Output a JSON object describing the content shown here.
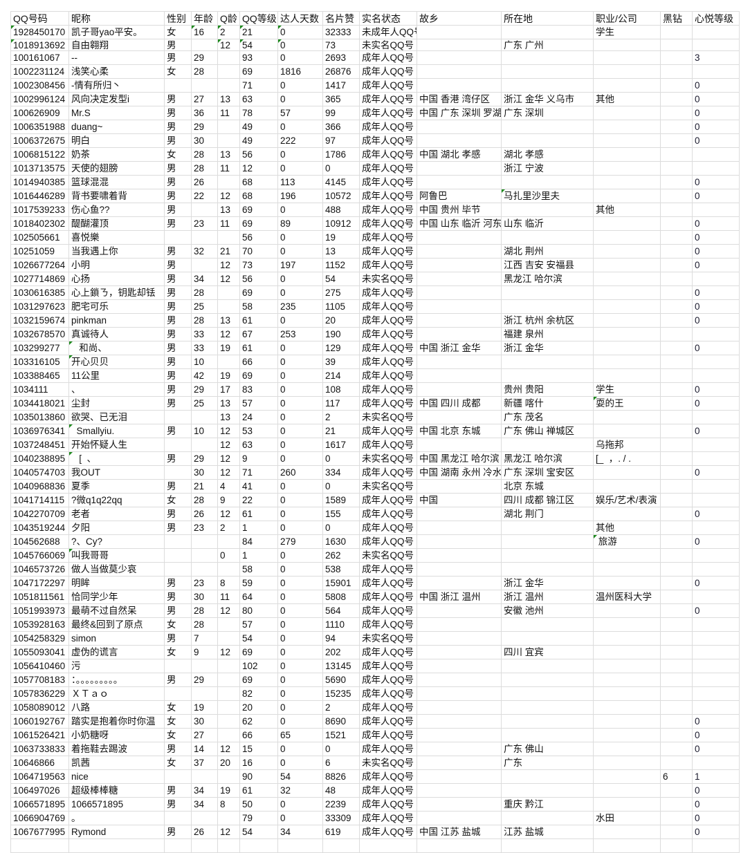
{
  "headers": [
    "QQ号码",
    "昵称",
    "性别",
    "年龄",
    "Q龄",
    "QQ等级",
    "达人天数",
    "名片赞",
    "实名状态",
    "故乡",
    "所在地",
    "职业/公司",
    "黑钻",
    "心悦等级"
  ],
  "accent_colors": {
    "gridline": "#dcdcdc",
    "cell_flag": "#1e8a1e"
  },
  "rows": [
    {
      "cells": [
        "1928450170",
        "凯子哥yao平安。",
        "女",
        "16",
        "2",
        "21",
        "0",
        "32333",
        "未成年人QQ号",
        "",
        "",
        "学生",
        "",
        ""
      ],
      "flags": [
        0,
        3,
        4,
        5,
        6
      ]
    },
    {
      "cells": [
        "1018913692",
        "自由翱翔",
        "男",
        "",
        "12",
        "54",
        "0",
        "73",
        "未实名QQ号",
        "",
        "广东 广州",
        "",
        "",
        ""
      ],
      "flags": [
        0,
        4,
        5,
        6
      ]
    },
    {
      "cells": [
        "100161067",
        "--",
        "男",
        "29",
        "",
        "93",
        "0",
        "2693",
        "成年人QQ号",
        "",
        "",
        "",
        "",
        "3"
      ]
    },
    {
      "cells": [
        "1002231124",
        "浅笑心柔",
        "女",
        "28",
        "",
        "69",
        "1816",
        "26876",
        "成年人QQ号",
        "",
        "",
        "",
        "",
        ""
      ]
    },
    {
      "cells": [
        "1002308456",
        "-情有所归丶",
        "",
        "",
        "",
        "71",
        "0",
        "1417",
        "成年人QQ号",
        "",
        "",
        "",
        "",
        "0"
      ]
    },
    {
      "cells": [
        "1002996124",
        "风向决定发型i",
        "男",
        "27",
        "13",
        "63",
        "0",
        "365",
        "成年人QQ号",
        "中国 香港 湾仔区",
        "浙江 金华 义乌市",
        "其他",
        "",
        "0"
      ]
    },
    {
      "cells": [
        "100626909",
        "Mr.S",
        "男",
        "36",
        "11",
        "78",
        "57",
        "99",
        "成年人QQ号",
        "中国 广东 深圳 罗湖区",
        "广东 深圳",
        "",
        "",
        "0"
      ]
    },
    {
      "cells": [
        "1006351988",
        "duang~",
        "男",
        "29",
        "",
        "49",
        "0",
        "366",
        "成年人QQ号",
        "",
        "",
        "",
        "",
        "0"
      ]
    },
    {
      "cells": [
        "1006372675",
        "明白",
        "男",
        "30",
        "",
        "49",
        "222",
        "97",
        "成年人QQ号",
        "",
        "",
        "",
        "",
        "0"
      ]
    },
    {
      "cells": [
        "1006815122",
        "奶茶",
        "女",
        "28",
        "13",
        "56",
        "0",
        "1786",
        "成年人QQ号",
        "中国 湖北 孝感",
        "湖北 孝感",
        "",
        "",
        ""
      ]
    },
    {
      "cells": [
        "1013713575",
        "天使的翅膀",
        "男",
        "28",
        "11",
        "12",
        "0",
        "0",
        "成年人QQ号",
        "",
        "浙江 宁波",
        "",
        "",
        ""
      ]
    },
    {
      "cells": [
        "1014940385",
        "篮球混混",
        "男",
        "26",
        "",
        "68",
        "113",
        "4145",
        "成年人QQ号",
        "",
        "",
        "",
        "",
        "0"
      ]
    },
    {
      "cells": [
        "1016446289",
        "背书要啸着背",
        "男",
        "22",
        "12",
        "68",
        "196",
        "10572",
        "成年人QQ号",
        "阿鲁巴",
        "马扎里沙里夫",
        "",
        "",
        "0"
      ],
      "flags": [
        10
      ]
    },
    {
      "cells": [
        "1017539233",
        "伤心鱼??",
        "男",
        "",
        "13",
        "69",
        "0",
        "488",
        "成年人QQ号",
        "中国 贵州 毕节",
        "",
        "其他",
        "",
        ""
      ]
    },
    {
      "cells": [
        "1018402302",
        "醍醐灌顶",
        "男",
        "23",
        "11",
        "69",
        "89",
        "10912",
        "成年人QQ号",
        "中国 山东 临沂 河东区",
        "山东 临沂",
        "",
        "",
        "0"
      ]
    },
    {
      "cells": [
        "102505661",
        "喜悦樂",
        "",
        "",
        "",
        "56",
        "0",
        "19",
        "成年人QQ号",
        "",
        "",
        "",
        "",
        "0"
      ]
    },
    {
      "cells": [
        "10251059",
        "当我遇上你",
        "男",
        "32",
        "21",
        "70",
        "0",
        "13",
        "成年人QQ号",
        "",
        "湖北 荆州",
        "",
        "",
        "0"
      ]
    },
    {
      "cells": [
        "1026677264",
        "小明",
        "男",
        "",
        "12",
        "73",
        "197",
        "1152",
        "成年人QQ号",
        "",
        "江西 吉安 安福县",
        "",
        "",
        "0"
      ]
    },
    {
      "cells": [
        "1027714869",
        "心扬",
        "男",
        "34",
        "12",
        "56",
        "0",
        "54",
        "未实名QQ号",
        "",
        "黑龙江 哈尔滨",
        "",
        "",
        ""
      ]
    },
    {
      "cells": [
        "1030616385",
        "心上鎖ㄋ，钥匙却铥",
        "男",
        "28",
        "",
        "69",
        "0",
        "275",
        "成年人QQ号",
        "",
        "",
        "",
        "",
        "0"
      ]
    },
    {
      "cells": [
        "1031297623",
        "肥宅可乐",
        "男",
        "25",
        "",
        "58",
        "235",
        "1105",
        "成年人QQ号",
        "",
        "",
        "",
        "",
        "0"
      ]
    },
    {
      "cells": [
        "1032159674",
        "pinkman",
        "男",
        "28",
        "13",
        "61",
        "0",
        "20",
        "成年人QQ号",
        "",
        "浙江 杭州 余杭区",
        "",
        "",
        "0"
      ]
    },
    {
      "cells": [
        "1032678570",
        "真诚待人",
        "男",
        "33",
        "12",
        "67",
        "253",
        "190",
        "成年人QQ号",
        "",
        "福建 泉州",
        "",
        "",
        ""
      ]
    },
    {
      "cells": [
        "103299277",
        "   和尚、",
        "男",
        "33",
        "19",
        "61",
        "0",
        "129",
        "成年人QQ号",
        "中国 浙江 金华",
        "浙江 金华",
        "",
        "",
        "0"
      ],
      "flags": [
        1
      ]
    },
    {
      "cells": [
        "103316105",
        "开心贝贝",
        "男",
        "10",
        "",
        "66",
        "0",
        "39",
        "成年人QQ号",
        "",
        "",
        "",
        "",
        ""
      ],
      "flags": [
        1
      ]
    },
    {
      "cells": [
        "103388465",
        "11公里",
        "男",
        "42",
        "19",
        "69",
        "0",
        "214",
        "成年人QQ号",
        "",
        "",
        "",
        "",
        ""
      ]
    },
    {
      "cells": [
        "1034111",
        "、",
        "男",
        "29",
        "17",
        "83",
        "0",
        "108",
        "成年人QQ号",
        "",
        "贵州 贵阳",
        "学生",
        "",
        "0"
      ]
    },
    {
      "cells": [
        "1034418021",
        "尘封",
        "男",
        "25",
        "13",
        "57",
        "0",
        "117",
        "成年人QQ号",
        "中国 四川 成都",
        "新疆 喀什",
        "耍的王",
        "",
        "0"
      ],
      "flags": [
        11
      ]
    },
    {
      "cells": [
        "1035013860",
        "欲哭、已无泪",
        "",
        "",
        "13",
        "24",
        "0",
        "2",
        "未实名QQ号",
        "",
        "广东 茂名",
        "",
        "",
        ""
      ]
    },
    {
      "cells": [
        "1036976341",
        "  Smallyiu.",
        "男",
        "10",
        "12",
        "53",
        "0",
        "21",
        "成年人QQ号",
        "中国 北京 东城",
        "广东 佛山 禅城区",
        "",
        "",
        "0"
      ],
      "flags": [
        1
      ]
    },
    {
      "cells": [
        "1037248451",
        "开始怀疑人生",
        "",
        "",
        "12",
        "63",
        "0",
        "1617",
        "成年人QQ号",
        "",
        "",
        "乌拖邦",
        "",
        ""
      ]
    },
    {
      "cells": [
        "1040238895",
        "   [  、",
        "男",
        "29",
        "12",
        "9",
        "0",
        "0",
        "未实名QQ号",
        "中国 黑龙江 哈尔滨",
        "黑龙江 哈尔滨",
        "[_  ，. / .",
        "",
        ""
      ],
      "flags": [
        1
      ]
    },
    {
      "cells": [
        "1040574703",
        "我OUT",
        "",
        "30",
        "12",
        "71",
        "260",
        "334",
        "成年人QQ号",
        "中国 湖南 永州 冷水滩",
        "广东 深圳 宝安区",
        "",
        "",
        "0"
      ]
    },
    {
      "cells": [
        "1040968836",
        "夏季",
        "男",
        "21",
        "4",
        "41",
        "0",
        "0",
        "未实名QQ号",
        "",
        "北京 东城",
        "",
        "",
        ""
      ]
    },
    {
      "cells": [
        "1041714115",
        "?微q1q22qq",
        "女",
        "28",
        "9",
        "22",
        "0",
        "1589",
        "成年人QQ号",
        "中国",
        "四川 成都 锦江区",
        "娱乐/艺术/表演",
        "",
        ""
      ]
    },
    {
      "cells": [
        "1042270709",
        "老者",
        "男",
        "26",
        "12",
        "61",
        "0",
        "155",
        "成年人QQ号",
        "",
        "湖北 荆门",
        "",
        "",
        "0"
      ]
    },
    {
      "cells": [
        "1043519244",
        "夕阳",
        "男",
        "23",
        "2",
        "1",
        "0",
        "0",
        "成年人QQ号",
        "",
        "",
        "其他",
        "",
        ""
      ]
    },
    {
      "cells": [
        "104562688",
        "?、Cy?",
        "",
        "",
        "",
        "84",
        "279",
        "1630",
        "成年人QQ号",
        "",
        "",
        " 旅游",
        "",
        "0"
      ],
      "flags": [
        11
      ]
    },
    {
      "cells": [
        "1045766069",
        "叫我哥哥",
        "",
        "",
        "0",
        "1",
        "0",
        "262",
        "未实名QQ号",
        "",
        "",
        "",
        "",
        ""
      ],
      "flags": [
        1
      ]
    },
    {
      "cells": [
        "1046573726",
        "做人当做莫少哀",
        "",
        "",
        "",
        "58",
        "0",
        "538",
        "成年人QQ号",
        "",
        "",
        "",
        "",
        ""
      ]
    },
    {
      "cells": [
        "1047172297",
        "明眸",
        "男",
        "23",
        "8",
        "59",
        "0",
        "15901",
        "成年人QQ号",
        "",
        "浙江 金华",
        "",
        "",
        "0"
      ]
    },
    {
      "cells": [
        "1051811561",
        "恰同学少年",
        "男",
        "30",
        "11",
        "64",
        "0",
        "5808",
        "成年人QQ号",
        "中国 浙江 温州",
        "浙江 温州",
        "温州医科大学",
        "",
        ""
      ]
    },
    {
      "cells": [
        "1051993973",
        "最萌不过自然呆",
        "男",
        "28",
        "12",
        "80",
        "0",
        "564",
        "成年人QQ号",
        "",
        "安徽 池州",
        "",
        "",
        "0"
      ]
    },
    {
      "cells": [
        "1053928163",
        "最终&回到了原点",
        "女",
        "28",
        "",
        "57",
        "0",
        "1110",
        "成年人QQ号",
        "",
        "",
        "",
        "",
        ""
      ]
    },
    {
      "cells": [
        "1054258329",
        "simon",
        "男",
        "7",
        "",
        "54",
        "0",
        "94",
        "未实名QQ号",
        "",
        "",
        "",
        "",
        ""
      ]
    },
    {
      "cells": [
        "1055093041",
        "虚伪的谎言",
        "女",
        "9",
        "12",
        "69",
        "0",
        "202",
        "成年人QQ号",
        "",
        "四川 宜宾",
        "",
        "",
        ""
      ]
    },
    {
      "cells": [
        "1056410460",
        "污",
        "",
        "",
        "",
        "102",
        "0",
        "13145",
        "成年人QQ号",
        "",
        "",
        "",
        "",
        ""
      ]
    },
    {
      "cells": [
        "1057708183",
        "：。。。。。。。。。",
        "男",
        "29",
        "",
        "69",
        "0",
        "5690",
        "成年人QQ号",
        "",
        "",
        "",
        "",
        ""
      ]
    },
    {
      "cells": [
        "1057836229",
        "ＸＴａｏ",
        "",
        "",
        "",
        "82",
        "0",
        "15235",
        "成年人QQ号",
        "",
        "",
        "",
        "",
        ""
      ]
    },
    {
      "cells": [
        "1058089012",
        "八路",
        "女",
        "19",
        "",
        "20",
        "0",
        "2",
        "成年人QQ号",
        "",
        "",
        "",
        "",
        ""
      ]
    },
    {
      "cells": [
        "1060192767",
        "踏实是抱着你时你温",
        "女",
        "30",
        "",
        "62",
        "0",
        "8690",
        "成年人QQ号",
        "",
        "",
        "",
        "",
        "0"
      ]
    },
    {
      "cells": [
        "1061526421",
        "小奶糖呀",
        "女",
        "27",
        "",
        "66",
        "65",
        "1521",
        "成年人QQ号",
        "",
        "",
        "",
        "",
        "0"
      ]
    },
    {
      "cells": [
        "1063733833",
        "着拖鞋去踢波",
        "男",
        "14",
        "12",
        "15",
        "0",
        "0",
        "成年人QQ号",
        "",
        "广东 佛山",
        "",
        "",
        "0"
      ]
    },
    {
      "cells": [
        "10646866",
        "凯茜",
        "女",
        "37",
        "20",
        "16",
        "0",
        "6",
        "未实名QQ号",
        "",
        "广东",
        "",
        "",
        ""
      ]
    },
    {
      "cells": [
        "1064719563",
        "nice",
        "",
        "",
        "",
        "90",
        "54",
        "8826",
        "成年人QQ号",
        "",
        "",
        "",
        "6",
        "1"
      ]
    },
    {
      "cells": [
        "106497026",
        "超级棒棒糖",
        "男",
        "34",
        "19",
        "61",
        "32",
        "48",
        "成年人QQ号",
        "",
        "",
        "",
        "",
        "0"
      ]
    },
    {
      "cells": [
        "1066571895",
        "1066571895",
        "男",
        "34",
        "8",
        "50",
        "0",
        "2239",
        "成年人QQ号",
        "",
        "重庆 黔江",
        "",
        "",
        "0"
      ]
    },
    {
      "cells": [
        "1066904769",
        "。",
        "",
        "",
        "",
        "79",
        "0",
        "33309",
        "成年人QQ号",
        "",
        "",
        "水田",
        "",
        "0"
      ]
    },
    {
      "cells": [
        "1067677995",
        "Rymond",
        "男",
        "26",
        "12",
        "54",
        "34",
        "619",
        "成年人QQ号",
        "中国 江苏 盐城",
        "江苏 盐城",
        "",
        "",
        "0"
      ]
    }
  ]
}
